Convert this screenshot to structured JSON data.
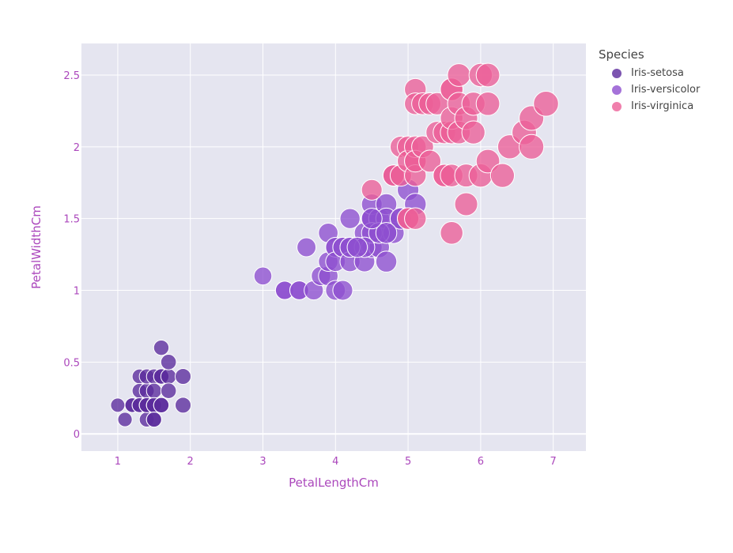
{
  "chart_data": {
    "type": "scatter",
    "title": "",
    "xlabel": "PetalLengthCm",
    "ylabel": "PetalWidthCm",
    "xlim": [
      0.5,
      7.45
    ],
    "ylim": [
      -0.12,
      2.72
    ],
    "grid": true,
    "legend_placement": "top-right",
    "x_ticks": [
      1,
      2,
      3,
      4,
      5,
      6,
      7
    ],
    "y_ticks": [
      0,
      0.5,
      1,
      1.5,
      2,
      2.5
    ],
    "legend_title": "Species",
    "series": [
      {
        "name": "Iris-setosa",
        "color": "#5b2b9c",
        "x": [
          1.0,
          1.1,
          1.2,
          1.2,
          1.3,
          1.3,
          1.3,
          1.3,
          1.4,
          1.4,
          1.4,
          1.4,
          1.4,
          1.4,
          1.5,
          1.5,
          1.5,
          1.5,
          1.5,
          1.5,
          1.5,
          1.6,
          1.6,
          1.6,
          1.6,
          1.6,
          1.7,
          1.7,
          1.7,
          1.9,
          1.9
        ],
        "y": [
          0.2,
          0.1,
          0.2,
          0.2,
          0.4,
          0.3,
          0.2,
          0.2,
          0.2,
          0.3,
          0.2,
          0.4,
          0.1,
          0.2,
          0.2,
          0.4,
          0.1,
          0.2,
          0.3,
          0.2,
          0.1,
          0.2,
          0.6,
          0.4,
          0.2,
          0.4,
          0.4,
          0.5,
          0.3,
          0.4,
          0.2
        ]
      },
      {
        "name": "Iris-versicolor",
        "color": "#8e4fcf",
        "x": [
          3.0,
          3.3,
          3.3,
          3.5,
          3.5,
          3.6,
          3.7,
          3.8,
          3.9,
          3.9,
          3.9,
          4.0,
          4.0,
          4.0,
          4.0,
          4.1,
          4.1,
          4.1,
          4.2,
          4.2,
          4.2,
          4.3,
          4.3,
          4.4,
          4.4,
          4.4,
          4.5,
          4.5,
          4.5,
          4.5,
          4.6,
          4.6,
          4.6,
          4.7,
          4.7,
          4.7,
          4.7,
          4.8,
          4.8,
          4.9,
          4.9,
          5.0,
          5.1,
          4.5,
          4.4,
          4.2,
          4.6,
          4.7,
          4.3,
          4.5
        ],
        "y": [
          1.1,
          1.0,
          1.0,
          1.0,
          1.0,
          1.3,
          1.0,
          1.1,
          1.1,
          1.2,
          1.4,
          1.0,
          1.3,
          1.3,
          1.2,
          1.0,
          1.3,
          1.3,
          1.3,
          1.2,
          1.5,
          1.3,
          1.3,
          1.4,
          1.3,
          1.2,
          1.5,
          1.5,
          1.3,
          1.6,
          1.5,
          1.4,
          1.3,
          1.4,
          1.6,
          1.5,
          1.2,
          1.4,
          1.8,
          1.5,
          1.5,
          1.7,
          1.6,
          1.4,
          1.3,
          1.3,
          1.4,
          1.4,
          1.3,
          1.5
        ]
      },
      {
        "name": "Iris-virginica",
        "color": "#ec5f97",
        "x": [
          4.5,
          4.8,
          4.8,
          4.9,
          4.9,
          5.0,
          5.0,
          5.0,
          5.0,
          5.1,
          5.1,
          5.1,
          5.1,
          5.1,
          5.1,
          5.1,
          5.2,
          5.2,
          5.3,
          5.3,
          5.4,
          5.4,
          5.5,
          5.5,
          5.5,
          5.6,
          5.6,
          5.6,
          5.6,
          5.6,
          5.7,
          5.7,
          5.7,
          5.8,
          5.8,
          5.8,
          5.9,
          5.9,
          6.0,
          6.0,
          6.1,
          6.1,
          6.1,
          6.3,
          6.4,
          6.6,
          6.7,
          6.7,
          6.9,
          5.6
        ],
        "y": [
          1.7,
          1.8,
          1.8,
          1.8,
          2.0,
          1.5,
          2.0,
          1.9,
          1.5,
          2.4,
          1.9,
          2.3,
          1.8,
          2.0,
          1.9,
          1.5,
          2.3,
          2.0,
          1.9,
          2.3,
          2.1,
          2.3,
          1.8,
          2.1,
          1.8,
          2.4,
          2.1,
          2.2,
          2.4,
          1.8,
          2.5,
          2.3,
          2.1,
          1.8,
          2.2,
          1.6,
          2.3,
          2.1,
          2.5,
          1.8,
          2.5,
          2.3,
          1.9,
          1.8,
          2.0,
          2.1,
          2.2,
          2.0,
          2.3,
          1.4
        ]
      }
    ]
  }
}
